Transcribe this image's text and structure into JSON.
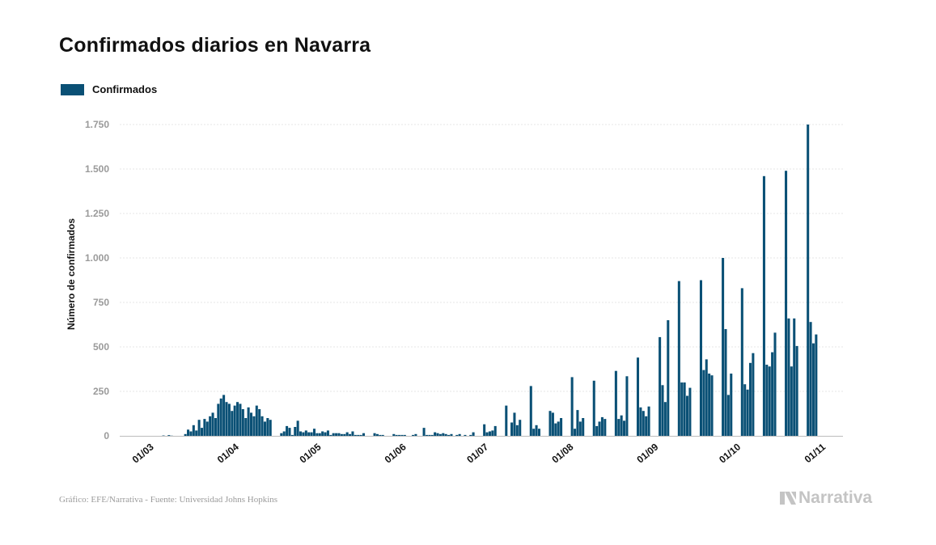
{
  "title": "Confirmados diarios en Navarra",
  "legend": {
    "label": "Confirmados",
    "color": "#0a5075"
  },
  "source": "Gráfico: EFE/Narrativa - Fuente: Universidad Johns Hopkins",
  "brand": {
    "name": "Narrativa",
    "icon": "narrativa-logo-icon"
  },
  "chart_data": {
    "type": "bar",
    "ylabel": "Número de confirmados",
    "ylim": [
      0,
      1750
    ],
    "yticks": [
      0,
      250,
      500,
      750,
      1000,
      1250,
      1500,
      1750
    ],
    "ytick_labels": [
      "0",
      "250",
      "500",
      "750",
      "1.000",
      "1.250",
      "1.500",
      "1.750"
    ],
    "grid": true,
    "legend_position": "top-left",
    "x_start_date": "2020-02-28",
    "xticks": [
      {
        "label": "01/03",
        "day": 2
      },
      {
        "label": "01/04",
        "day": 33
      },
      {
        "label": "01/05",
        "day": 63
      },
      {
        "label": "01/06",
        "day": 94
      },
      {
        "label": "01/07",
        "day": 124
      },
      {
        "label": "01/08",
        "day": 155
      },
      {
        "label": "01/09",
        "day": 186
      },
      {
        "label": "01/10",
        "day": 216
      },
      {
        "label": "01/11",
        "day": 247
      }
    ],
    "series": [
      {
        "name": "Confirmados",
        "color": "#0a5075",
        "values": [
          0,
          0,
          0,
          0,
          0,
          0,
          0,
          0,
          0,
          2,
          0,
          4,
          1,
          0,
          0,
          0,
          0,
          10,
          35,
          25,
          60,
          30,
          90,
          45,
          95,
          80,
          110,
          130,
          100,
          180,
          210,
          230,
          190,
          180,
          140,
          170,
          190,
          180,
          150,
          100,
          160,
          130,
          110,
          170,
          150,
          110,
          80,
          100,
          90,
          0,
          0,
          0,
          15,
          25,
          55,
          45,
          5,
          50,
          85,
          25,
          20,
          30,
          20,
          20,
          40,
          15,
          15,
          25,
          20,
          30,
          5,
          15,
          15,
          15,
          10,
          10,
          20,
          10,
          25,
          5,
          5,
          5,
          15,
          0,
          0,
          0,
          15,
          10,
          5,
          5,
          0,
          0,
          0,
          10,
          5,
          5,
          5,
          5,
          0,
          0,
          5,
          10,
          0,
          0,
          45,
          5,
          5,
          5,
          20,
          15,
          10,
          15,
          10,
          5,
          10,
          0,
          5,
          10,
          0,
          5,
          0,
          5,
          20,
          0,
          0,
          0,
          65,
          20,
          25,
          30,
          55,
          0,
          0,
          0,
          170,
          0,
          75,
          130,
          60,
          90,
          0,
          0,
          0,
          280,
          40,
          60,
          40,
          0,
          0,
          0,
          140,
          130,
          70,
          80,
          100,
          0,
          0,
          0,
          330,
          40,
          145,
          80,
          100,
          0,
          0,
          0,
          310,
          55,
          80,
          105,
          95,
          0,
          0,
          0,
          365,
          95,
          115,
          85,
          335,
          0,
          0,
          0,
          440,
          160,
          140,
          110,
          165,
          0,
          0,
          0,
          555,
          285,
          190,
          650,
          0,
          0,
          0,
          870,
          300,
          300,
          225,
          270,
          0,
          0,
          0,
          875,
          370,
          430,
          350,
          340,
          0,
          0,
          0,
          1000,
          600,
          230,
          350,
          0,
          0,
          0,
          830,
          290,
          260,
          410,
          465,
          0,
          0,
          0,
          1460,
          400,
          390,
          470,
          580,
          0,
          0,
          0,
          1490,
          660,
          390,
          660,
          505,
          0,
          0,
          0,
          1750,
          640,
          520,
          570
        ]
      }
    ]
  }
}
